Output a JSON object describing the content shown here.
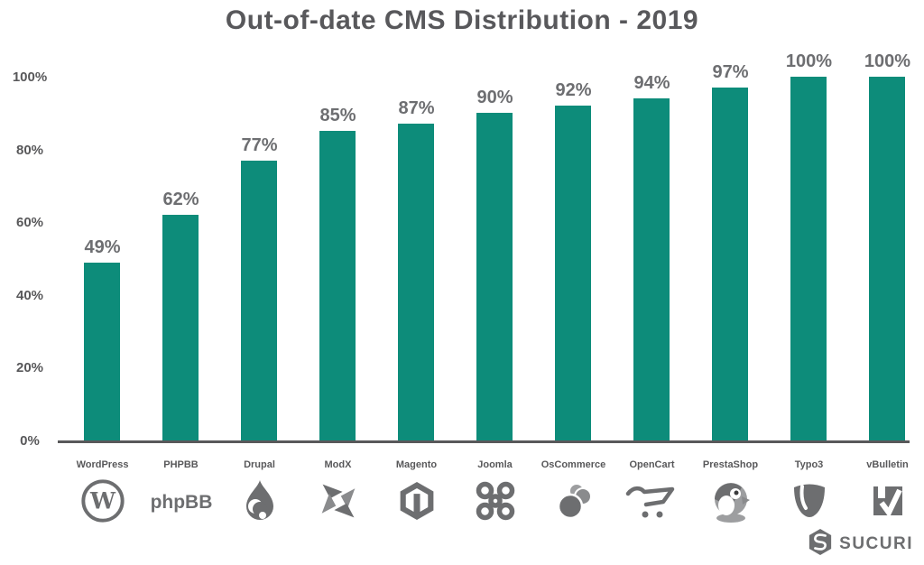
{
  "chart_data": {
    "type": "bar",
    "title": "Out-of-date CMS Distribution - 2019",
    "categories": [
      "WordPress",
      "PHPBB",
      "Drupal",
      "ModX",
      "Magento",
      "Joomla",
      "OsCommerce",
      "OpenCart",
      "PrestaShop",
      "Typo3",
      "vBulletin"
    ],
    "values": [
      49,
      62,
      77,
      85,
      87,
      90,
      92,
      94,
      97,
      100,
      100
    ],
    "value_labels": [
      "49%",
      "62%",
      "77%",
      "85%",
      "87%",
      "90%",
      "92%",
      "94%",
      "97%",
      "100%",
      "100%"
    ],
    "icons": [
      "wordpress-icon",
      "phpbb-icon",
      "drupal-icon",
      "modx-icon",
      "magento-icon",
      "joomla-icon",
      "oscommerce-icon",
      "opencart-icon",
      "prestashop-icon",
      "typo3-icon",
      "vbulletin-icon"
    ],
    "xlabel": "",
    "ylabel": "",
    "ylim": [
      0,
      100
    ],
    "yticks": [
      "0%",
      "20%",
      "40%",
      "60%",
      "80%",
      "100%"
    ],
    "grid": false,
    "legend": false,
    "bar_color": "#0d8c7a",
    "title_color": "#58585b",
    "value_label_color": "#6d6e71",
    "axis_color": "#58585a"
  },
  "branding": {
    "logo_text": "SUCURI"
  }
}
